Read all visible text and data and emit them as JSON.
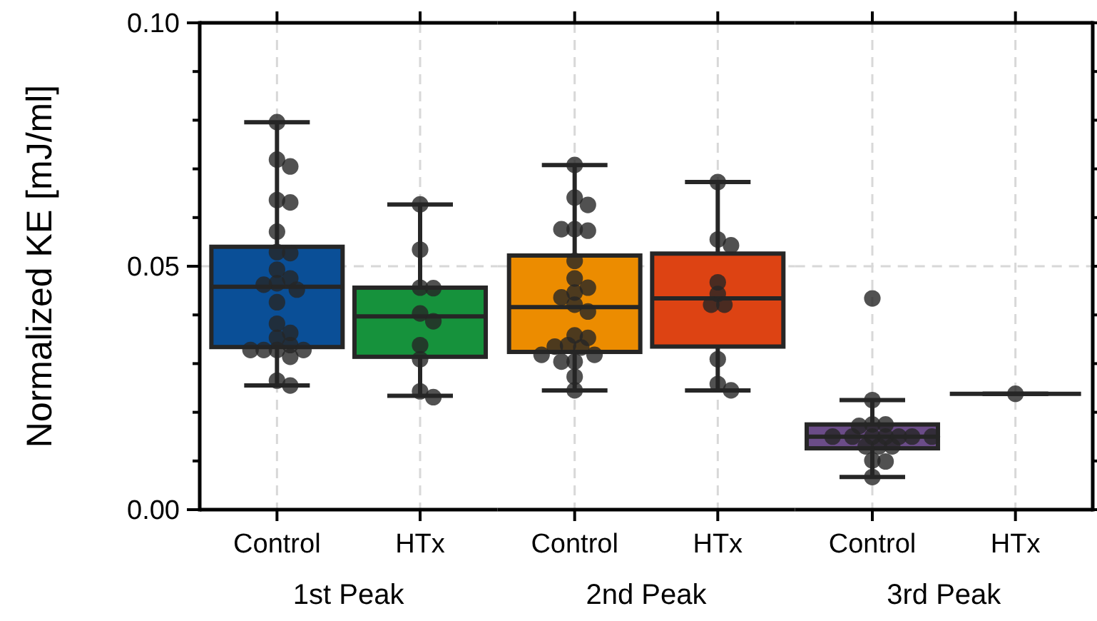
{
  "chart_data": [
    {
      "type": "box",
      "ylabel": "Normalized KE [mJ/ml]",
      "xlabel": "1st Peak",
      "categories": [
        "Control",
        "HTx"
      ],
      "ylim": [
        0,
        0.1
      ],
      "yticks": [
        {
          "value": 0,
          "label": "0.00"
        },
        {
          "value": 0.01,
          "label": null
        },
        {
          "value": 0.02,
          "label": null
        },
        {
          "value": 0.03,
          "label": null
        },
        {
          "value": 0.04,
          "label": null
        },
        {
          "value": 0.05,
          "label": "0.05"
        },
        {
          "value": 0.06,
          "label": null
        },
        {
          "value": 0.07,
          "label": null
        },
        {
          "value": 0.08,
          "label": null
        },
        {
          "value": 0.09,
          "label": null
        },
        {
          "value": 0.1,
          "label": "0.10"
        }
      ],
      "grid": true,
      "series": [
        {
          "colors": [
            "#0a4f97",
            "#16923c"
          ],
          "boxes": [
            {
              "low": 0.0255,
              "q1": 0.0334,
              "median": 0.0458,
              "q3": 0.054,
              "high": 0.0796
            },
            {
              "low": 0.0234,
              "q1": 0.0314,
              "median": 0.0397,
              "q3": 0.0456,
              "high": 0.0627
            }
          ]
        },
        {
          "type": "scatter",
          "color": "#262626",
          "x": [
            "Control",
            "Control",
            "Control",
            "Control",
            "Control",
            "Control",
            "Control",
            "Control",
            "Control",
            "Control",
            "Control",
            "Control",
            "Control",
            "Control",
            "Control",
            "Control",
            "Control",
            "Control",
            "Control",
            "Control",
            "Control",
            "Control",
            "Control",
            "Control",
            "Control"
          ],
          "values": [
            0.0796,
            0.0719,
            0.0705,
            0.0636,
            0.0631,
            0.0571,
            0.0529,
            0.0527,
            0.0493,
            0.0475,
            0.0465,
            0.0462,
            0.0452,
            0.0426,
            0.0382,
            0.0363,
            0.0353,
            0.0338,
            0.0328,
            0.0328,
            0.0328,
            0.0328,
            0.0314,
            0.0265,
            0.0255
          ]
        },
        {
          "type": "scatter",
          "color": "#262626",
          "x": [
            "HTx",
            "HTx",
            "HTx",
            "HTx",
            "HTx",
            "HTx",
            "HTx",
            "HTx",
            "HTx",
            "HTx"
          ],
          "values": [
            0.0627,
            0.0534,
            0.0456,
            0.0455,
            0.0403,
            0.0387,
            0.0338,
            0.0309,
            0.0243,
            0.0231
          ]
        }
      ]
    },
    {
      "type": "box",
      "xlabel": "2nd Peak",
      "categories": [
        "Control",
        "HTx"
      ],
      "ylim": [
        0,
        0.1
      ],
      "yticks": [
        0,
        0.05,
        0.1
      ],
      "grid": true,
      "tick_labels": "x",
      "series": [
        {
          "colors": [
            "#ec8c00",
            "#dd4313"
          ],
          "boxes": [
            {
              "low": 0.0245,
              "q1": 0.0324,
              "median": 0.0416,
              "q3": 0.0522,
              "high": 0.0708
            },
            {
              "low": 0.0245,
              "q1": 0.0335,
              "median": 0.0434,
              "q3": 0.0526,
              "high": 0.0673
            }
          ]
        },
        {
          "type": "scatter",
          "color": "#262626",
          "x": [
            "Control",
            "Control",
            "Control",
            "Control",
            "Control",
            "Control",
            "Control",
            "Control",
            "Control",
            "Control",
            "Control",
            "Control",
            "Control",
            "Control",
            "Control",
            "Control",
            "Control",
            "Control",
            "Control",
            "Control",
            "Control",
            "Control",
            "Control",
            "Control"
          ],
          "values": [
            0.0708,
            0.0641,
            0.0626,
            0.0576,
            0.0573,
            0.0576,
            0.0511,
            0.0475,
            0.0456,
            0.0446,
            0.0436,
            0.0421,
            0.0407,
            0.0358,
            0.0353,
            0.0338,
            0.0335,
            0.0333,
            0.0318,
            0.0318,
            0.0304,
            0.0304,
            0.0273,
            0.0245
          ]
        },
        {
          "type": "scatter",
          "color": "#262626",
          "x": [
            "HTx",
            "HTx",
            "HTx",
            "HTx",
            "HTx",
            "HTx",
            "HTx",
            "HTx",
            "HTx",
            "HTx"
          ],
          "values": [
            0.0673,
            0.0555,
            0.0543,
            0.0467,
            0.0443,
            0.0421,
            0.0421,
            0.0309,
            0.0258,
            0.0245
          ]
        }
      ]
    },
    {
      "type": "box",
      "xlabel": "3rd Peak",
      "categories": [
        "Control",
        "HTx"
      ],
      "ylim": [
        0,
        0.1
      ],
      "yticks": [
        0,
        {
          "value": 0.01,
          "label": null
        },
        {
          "value": 0.02,
          "label": null
        },
        {
          "value": 0.03,
          "label": null
        },
        {
          "value": 0.04,
          "label": null
        },
        0.05,
        {
          "value": 0.06,
          "label": null
        },
        {
          "value": 0.07,
          "label": null
        },
        {
          "value": 0.08,
          "label": null
        },
        {
          "value": 0.09,
          "label": null
        },
        0.1
      ],
      "grid": true,
      "tick_labels": "x",
      "series": [
        {
          "colors": [
            "#6b4c88",
            "#262626"
          ],
          "boxes": [
            {
              "low": 0.0067,
              "q1": 0.0126,
              "median": 0.015,
              "q3": 0.0175,
              "high": 0.0225
            },
            {
              "low": 0.0238,
              "q1": 0.0238,
              "median": 0.0238,
              "q3": 0.0238,
              "high": 0.0238
            }
          ]
        },
        {
          "type": "scatter",
          "color": "#262626",
          "x": [
            "Control",
            "Control",
            "Control",
            "Control",
            "Control",
            "Control",
            "Control",
            "Control",
            "Control",
            "Control",
            "Control",
            "Control",
            "Control",
            "Control",
            "Control",
            "Control",
            "Control",
            "Control"
          ],
          "values": [
            0.0434,
            0.0225,
            0.0175,
            0.0175,
            0.0172,
            0.015,
            0.015,
            0.015,
            0.015,
            0.015,
            0.015,
            0.015,
            0.013,
            0.013,
            0.013,
            0.0101,
            0.0099,
            0.0067
          ]
        },
        {
          "type": "scatter",
          "color": "#262626",
          "x": [
            "HTx"
          ],
          "values": [
            0.0238
          ]
        }
      ]
    }
  ]
}
